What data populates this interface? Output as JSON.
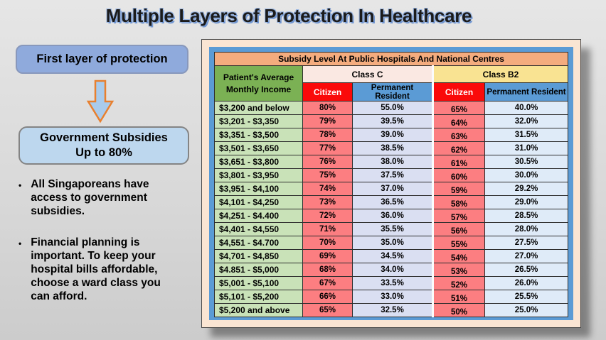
{
  "title": "Multiple Layers of Protection In Healthcare",
  "left_panel": {
    "box1_label": "First layer of protection",
    "arrow_icon": "down-arrow",
    "box2_label": "Government Subsidies\nUp to 80%",
    "bullet_glyph": "•",
    "bullets": [
      "All Singaporeans have\naccess to government\nsubsidies.",
      "Financial planning is\nimportant. To keep your\nhospital  bills affordable,\nchoose a ward class you\ncan afford."
    ]
  },
  "table": {
    "title": "Subsidy Level At Public Hospitals And National Centres",
    "income_header": "Patient's Average\nMonthly Income",
    "class_c_label": "Class C",
    "class_b2_label": "Class B2",
    "citizen_label": "Citizen",
    "pr_label": "Permanent Resident",
    "columns": [
      "Patient's Average Monthly Income",
      "Class C Citizen",
      "Class C Permanent Resident",
      "Class B2 Citizen",
      "Class B2 Permanent Resident"
    ],
    "rows": [
      [
        "$3,200 and below",
        "80%",
        "55.0%",
        "65%",
        "40.0%"
      ],
      [
        "$3,201 - $3,350",
        "79%",
        "39.5%",
        "64%",
        "32.0%"
      ],
      [
        "$3,351 - $3,500",
        "78%",
        "39.0%",
        "63%",
        "31.5%"
      ],
      [
        "$3,501 - $3,650",
        "77%",
        "38.5%",
        "62%",
        "31.0%"
      ],
      [
        "$3,651 - $3,800",
        "76%",
        "38.0%",
        "61%",
        "30.5%"
      ],
      [
        "$3,801 - $3,950",
        "75%",
        "37.5%",
        "60%",
        "30.0%"
      ],
      [
        "$3,951 - $4,100",
        "74%",
        "37.0%",
        "59%",
        "29.2%"
      ],
      [
        "$4,101 - $4,250",
        "73%",
        "36.5%",
        "58%",
        "29.0%"
      ],
      [
        "$4,251 - $4.400",
        "72%",
        "36.0%",
        "57%",
        "28.5%"
      ],
      [
        "$4,401 - $4,550",
        "71%",
        "35.5%",
        "56%",
        "28.0%"
      ],
      [
        "$4,551 - $4.700",
        "70%",
        "35.0%",
        "55%",
        "27.5%"
      ],
      [
        "$4,701 - $4,850",
        "69%",
        "34.5%",
        "54%",
        "27.0%"
      ],
      [
        "$4.851 - $5,000",
        "68%",
        "34.0%",
        "53%",
        "26.5%"
      ],
      [
        "$5,001 - $5,100",
        "67%",
        "33.5%",
        "52%",
        "26.0%"
      ],
      [
        "$5,101 - $5,200",
        "66%",
        "33.0%",
        "51%",
        "25.5%"
      ],
      [
        "$5,200 and above",
        "65%",
        "32.5%",
        "50%",
        "25.0%"
      ]
    ]
  },
  "colors": {
    "slide_bg": "#D9D9D9",
    "title_shadow": "#7096D2",
    "box1_bg": "#8FAADC",
    "box2_bg": "#BDD7EE",
    "arrow_fill": "#A9CBEC",
    "arrow_stroke": "#E8802F",
    "frame_peach": "#FAE5D3",
    "frame_blue": "#5B9BD5",
    "header_orange": "#F4AC7E",
    "header_green": "#7BB154",
    "class_c_bg": "#FAE8E2",
    "class_b2_bg": "#F9E392",
    "citizen_red": "#FA0A0A",
    "pr_blue": "#5B9BD5",
    "income_cell_green": "#C9E2B8",
    "citizen_cell_salmon": "#FC7E81",
    "pr_c_cell_lavender": "#DADFF2",
    "pr_b2_cell_blue": "#DFEBF8"
  }
}
